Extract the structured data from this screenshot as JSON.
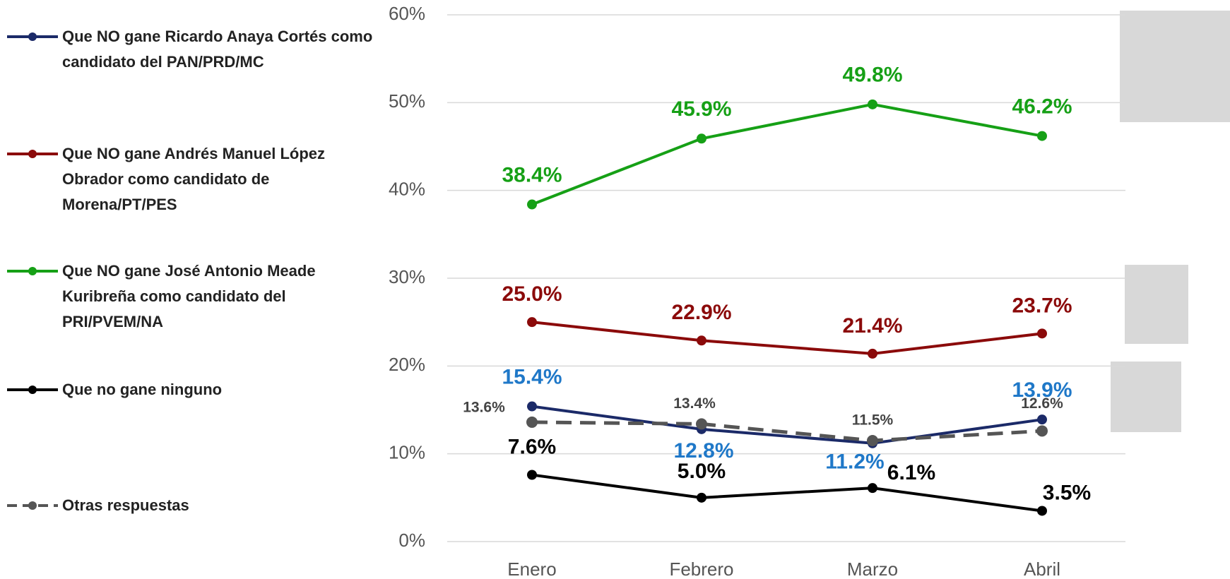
{
  "chart_data": {
    "type": "line",
    "categories": [
      "Enero",
      "Febrero",
      "Marzo",
      "Abril"
    ],
    "ylim": [
      0,
      60
    ],
    "yticks": [
      {
        "value": 0,
        "label": "0%"
      },
      {
        "value": 10,
        "label": "10%"
      },
      {
        "value": 20,
        "label": "20%"
      },
      {
        "value": 30,
        "label": "30%"
      },
      {
        "value": 40,
        "label": "40%"
      },
      {
        "value": 50,
        "label": "50%"
      },
      {
        "value": 60,
        "label": "60%"
      }
    ],
    "grid": true,
    "series": [
      {
        "name": "Que NO gane Ricardo Anaya Cortés como candidato del PAN/PRD/MC",
        "color": "#1b2a68",
        "label_color": "#1f78c8",
        "values": [
          15.4,
          12.8,
          11.2,
          13.9
        ],
        "value_labels": [
          "15.4%",
          "12.8%",
          "11.2%",
          "13.9%"
        ]
      },
      {
        "name": "Que NO gane Andrés Manuel López Obrador como candidato de Morena/PT/PES",
        "color": "#8b0a0a",
        "label_color": "#8b0a0a",
        "values": [
          25.0,
          22.9,
          21.4,
          23.7
        ],
        "value_labels": [
          "25.0%",
          "22.9%",
          "21.4%",
          "23.7%"
        ]
      },
      {
        "name": "Que NO gane José Antonio Meade Kuribreña como candidato del PRI/PVEM/NA",
        "color": "#16a016",
        "label_color": "#16a016",
        "values": [
          38.4,
          45.9,
          49.8,
          46.2
        ],
        "value_labels": [
          "38.4%",
          "45.9%",
          "49.8%",
          "46.2%"
        ]
      },
      {
        "name": "Que no gane ninguno",
        "color": "#000000",
        "label_color": "#000000",
        "values": [
          7.6,
          5.0,
          6.1,
          3.5
        ],
        "value_labels": [
          "7.6%",
          "5.0%",
          "6.1%",
          "3.5%"
        ]
      },
      {
        "name": "Otras respuestas",
        "color": "#555555",
        "label_color": "#444444",
        "dashed": true,
        "values": [
          13.6,
          13.4,
          11.5,
          12.6
        ],
        "value_labels": [
          "13.6%",
          "13.4%",
          "11.5%",
          "12.6%"
        ]
      }
    ]
  }
}
